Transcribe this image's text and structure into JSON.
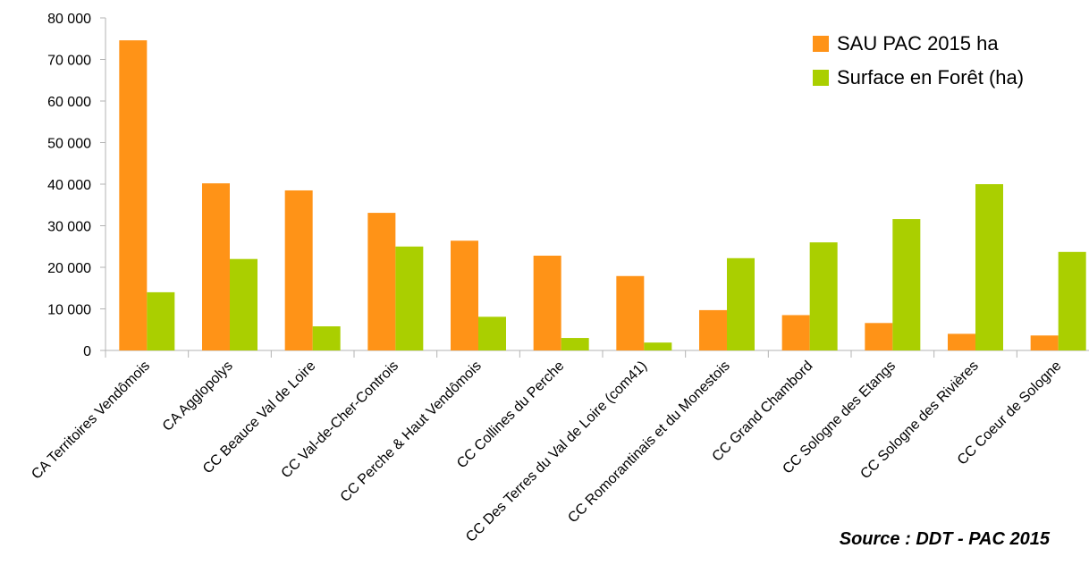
{
  "source_note": "Source : DDT - PAC 2015",
  "chart_data": {
    "type": "bar",
    "categories": [
      "CA Territoires Vendômois",
      "CA Agglopolys",
      "CC Beauce Val de Loire",
      "CC Val-de-Cher-Controis",
      "CC Perche & Haut Vendômois",
      "CC Collines du Perche",
      "CC Des Terres du Val de Loire (com41)",
      "CC Romorantinais et du Monestois",
      "CC Grand Chambord",
      "CC Sologne des Etangs",
      "CC Sologne des Rivières",
      "CC Coeur de Sologne"
    ],
    "series": [
      {
        "name": "SAU PAC 2015 ha",
        "color": "#ff9317",
        "values": [
          74600,
          40200,
          38500,
          33100,
          26400,
          22800,
          17900,
          9700,
          8500,
          6600,
          4000,
          3600
        ]
      },
      {
        "name": "Surface en Forêt (ha)",
        "color": "#aacf00",
        "values": [
          14000,
          22000,
          5800,
          25000,
          8100,
          3000,
          1900,
          22200,
          26000,
          31600,
          40000,
          23700
        ]
      }
    ],
    "y_ticks": [
      "0",
      "10 000",
      "20 000",
      "30 000",
      "40 000",
      "50 000",
      "60 000",
      "70 000",
      "80 000"
    ],
    "ylim": [
      0,
      80000
    ],
    "grid": false,
    "legend_position": "top-right"
  }
}
